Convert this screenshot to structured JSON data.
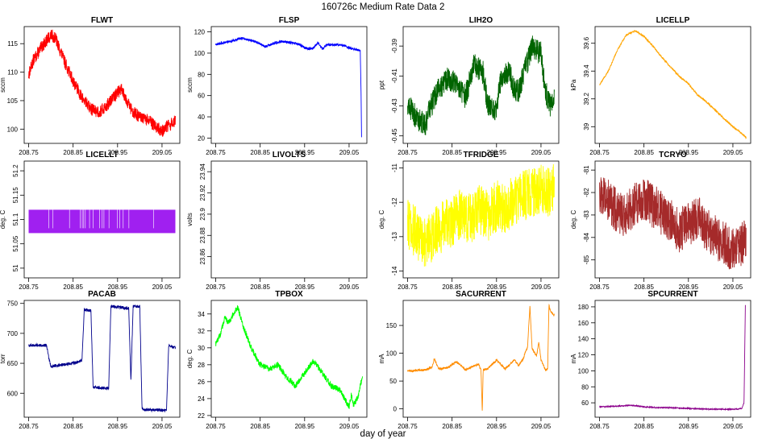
{
  "page": {
    "title": "160726c   Medium Rate Data 2",
    "xlabel": "day of year"
  },
  "chart_data": [
    {
      "type": "line",
      "title": "FLWT",
      "ylabel": "sccm",
      "color": "#ff0000",
      "xlim": [
        208.74,
        209.09
      ],
      "ylim": [
        97.5,
        118
      ],
      "yticks": [
        100,
        105,
        110,
        115
      ],
      "xticks": [
        208.75,
        208.85,
        208.95,
        209.05
      ],
      "noise": 1.1,
      "rotate": false,
      "series": [
        {
          "name": "FLWT",
          "x": [
            208.75,
            208.76,
            208.78,
            208.8,
            208.81,
            208.83,
            208.85,
            208.87,
            208.89,
            208.91,
            208.93,
            208.95,
            208.96,
            208.98,
            209.0,
            209.02,
            209.04,
            209.05,
            209.06,
            209.07,
            209.08
          ],
          "values": [
            109.5,
            112,
            114.5,
            116.5,
            116,
            112,
            108.5,
            105.5,
            103.5,
            103,
            104.5,
            106.5,
            107,
            103.5,
            102,
            101.5,
            100.2,
            99.6,
            100.4,
            100.8,
            101.6
          ]
        }
      ]
    },
    {
      "type": "line",
      "title": "FLSP",
      "ylabel": "sccm",
      "color": "#0000ff",
      "xlim": [
        208.74,
        209.09
      ],
      "ylim": [
        15,
        125
      ],
      "yticks": [
        20,
        40,
        60,
        80,
        100,
        120
      ],
      "xticks": [
        208.75,
        208.85,
        208.95,
        209.05
      ],
      "noise": 1.2,
      "rotate": false,
      "series": [
        {
          "name": "FLSP",
          "x": [
            208.75,
            208.77,
            208.79,
            208.81,
            208.83,
            208.85,
            208.86,
            208.88,
            208.9,
            208.92,
            208.94,
            208.95,
            208.96,
            208.97,
            208.98,
            208.99,
            209.0,
            209.02,
            209.04,
            209.05,
            209.06,
            209.07,
            209.075,
            209.077,
            209.078
          ],
          "values": [
            108,
            110,
            112,
            114,
            112,
            109,
            106,
            109,
            111,
            110,
            108,
            105,
            104,
            105,
            110,
            104,
            108,
            108,
            107,
            105,
            104,
            103,
            103,
            60,
            20
          ]
        }
      ]
    },
    {
      "type": "line",
      "title": "LIH2O",
      "ylabel": "ppt",
      "color": "#006400",
      "xlim": [
        208.74,
        209.09
      ],
      "ylim": [
        -0.455,
        -0.377
      ],
      "yticks": [
        -0.45,
        -0.43,
        -0.41,
        -0.39
      ],
      "xticks": [
        208.75,
        208.85,
        208.95,
        209.05
      ],
      "noise": 0.008,
      "rotate": true,
      "series": [
        {
          "name": "LIH2O",
          "x": [
            208.75,
            208.77,
            208.79,
            208.8,
            208.82,
            208.84,
            208.86,
            208.88,
            208.9,
            208.92,
            208.93,
            208.95,
            208.96,
            208.98,
            208.99,
            209.0,
            209.02,
            209.03,
            209.05,
            209.06,
            209.07,
            209.08
          ],
          "values": [
            -0.428,
            -0.438,
            -0.442,
            -0.432,
            -0.418,
            -0.412,
            -0.414,
            -0.424,
            -0.402,
            -0.408,
            -0.43,
            -0.432,
            -0.41,
            -0.407,
            -0.42,
            -0.42,
            -0.4,
            -0.39,
            -0.395,
            -0.42,
            -0.43,
            -0.425
          ]
        }
      ]
    },
    {
      "type": "line",
      "title": "LICELLP",
      "ylabel": "kPa",
      "color": "#ffa500",
      "xlim": [
        208.74,
        209.09
      ],
      "ylim": [
        38.88,
        39.72
      ],
      "yticks": [
        39.0,
        39.2,
        39.4,
        39.6
      ],
      "xticks": [
        208.75,
        208.85,
        208.95,
        209.05
      ],
      "noise": 0.006,
      "rotate": true,
      "series": [
        {
          "name": "LICELLP",
          "x": [
            208.75,
            208.77,
            208.79,
            208.81,
            208.83,
            208.85,
            208.87,
            208.89,
            208.91,
            208.93,
            208.95,
            208.97,
            208.99,
            209.01,
            209.03,
            209.05,
            209.07,
            209.08
          ],
          "values": [
            39.3,
            39.4,
            39.55,
            39.66,
            39.69,
            39.65,
            39.58,
            39.5,
            39.43,
            39.36,
            39.31,
            39.23,
            39.18,
            39.12,
            39.06,
            39.0,
            38.95,
            38.92
          ]
        }
      ]
    },
    {
      "type": "band",
      "title": "LICELLT",
      "ylabel": "deg. C",
      "color": "#a020f0",
      "xlim": [
        208.74,
        209.09
      ],
      "ylim": [
        50.98,
        51.22
      ],
      "yticks": [
        51.0,
        51.05,
        51.1,
        51.15,
        51.2
      ],
      "xticks": [
        208.75,
        208.85,
        208.95,
        209.05
      ],
      "noise": 0,
      "rotate": true,
      "series": [
        {
          "name": "LICELLT",
          "x": [
            208.75,
            209.08
          ],
          "values": [
            51.072,
            51.12
          ]
        }
      ]
    },
    {
      "type": "empty",
      "title": "LIVOLTS",
      "ylabel": "volts",
      "color": "#000000",
      "xlim": [
        208.74,
        209.09
      ],
      "ylim": [
        23.84,
        23.95
      ],
      "yticks": [
        23.86,
        23.88,
        23.9,
        23.92,
        23.94
      ],
      "xticks": [
        208.75,
        208.85,
        208.95,
        209.05
      ],
      "noise": 0,
      "rotate": true,
      "series": []
    },
    {
      "type": "line",
      "title": "TFRIDGE",
      "ylabel": "deg. C",
      "color": "#ffff00",
      "xlim": [
        208.74,
        209.09
      ],
      "ylim": [
        -14.2,
        -10.8
      ],
      "yticks": [
        -14.0,
        -13.0,
        -12.0,
        -11.0
      ],
      "xticks": [
        208.75,
        208.85,
        208.95,
        209.05
      ],
      "noise": 0.75,
      "rotate": true,
      "series": [
        {
          "name": "TFRIDGE",
          "x": [
            208.75,
            208.77,
            208.79,
            208.81,
            208.83,
            208.85,
            208.87,
            208.89,
            208.91,
            208.93,
            208.95,
            208.97,
            208.99,
            209.01,
            209.03,
            209.05,
            209.07,
            209.08
          ],
          "values": [
            -12.6,
            -12.9,
            -13.2,
            -12.9,
            -12.7,
            -12.6,
            -12.3,
            -12.5,
            -12.2,
            -12.4,
            -12.1,
            -12.2,
            -11.9,
            -11.8,
            -11.7,
            -11.6,
            -11.7,
            -11.6
          ]
        }
      ]
    },
    {
      "type": "line",
      "title": "TCRYO",
      "ylabel": "deg. C",
      "color": "#a52a2a",
      "xlim": [
        208.74,
        209.09
      ],
      "ylim": [
        -85.8,
        -80.6
      ],
      "yticks": [
        -85,
        -84,
        -83,
        -82,
        -81
      ],
      "xticks": [
        208.75,
        208.85,
        208.95,
        209.05
      ],
      "noise": 1.0,
      "rotate": true,
      "series": [
        {
          "name": "TCRYO",
          "x": [
            208.75,
            208.77,
            208.79,
            208.81,
            208.83,
            208.85,
            208.87,
            208.89,
            208.91,
            208.93,
            208.95,
            208.97,
            208.99,
            209.01,
            209.03,
            209.05,
            209.07,
            209.08
          ],
          "values": [
            -82.0,
            -82.4,
            -82.8,
            -83.0,
            -82.5,
            -82.2,
            -82.6,
            -82.9,
            -83.3,
            -83.7,
            -83.4,
            -83.1,
            -83.6,
            -84.0,
            -84.2,
            -84.6,
            -84.3,
            -84.0
          ]
        }
      ]
    },
    {
      "type": "line",
      "title": "PACAB",
      "ylabel": "torr",
      "color": "#00008b",
      "xlim": [
        208.74,
        209.09
      ],
      "ylim": [
        560,
        755
      ],
      "yticks": [
        600,
        650,
        700,
        750
      ],
      "xticks": [
        208.75,
        208.85,
        208.95,
        209.05
      ],
      "noise": 2.5,
      "rotate": false,
      "series": [
        {
          "name": "PACAB",
          "x": [
            208.75,
            208.79,
            208.795,
            208.8,
            208.83,
            208.86,
            208.87,
            208.875,
            208.89,
            208.895,
            208.93,
            208.935,
            208.94,
            208.975,
            208.98,
            208.985,
            209.0,
            209.005,
            209.01,
            209.06,
            209.065,
            209.07,
            209.08
          ],
          "values": [
            680,
            680,
            660,
            645,
            648,
            652,
            655,
            740,
            738,
            610,
            608,
            745,
            745,
            742,
            620,
            745,
            745,
            575,
            572,
            572,
            680,
            678,
            676
          ]
        }
      ]
    },
    {
      "type": "line",
      "title": "TPBOX",
      "ylabel": "deg. C",
      "color": "#00ff00",
      "xlim": [
        208.74,
        209.09
      ],
      "ylim": [
        21.8,
        35.6
      ],
      "yticks": [
        22,
        24,
        26,
        28,
        30,
        32,
        34
      ],
      "xticks": [
        208.75,
        208.85,
        208.95,
        209.05
      ],
      "noise": 0.35,
      "rotate": false,
      "series": [
        {
          "name": "TPBOX",
          "x": [
            208.75,
            208.76,
            208.77,
            208.78,
            208.79,
            208.8,
            208.81,
            208.83,
            208.85,
            208.87,
            208.89,
            208.91,
            208.93,
            208.95,
            208.97,
            208.99,
            209.01,
            209.03,
            209.05,
            209.055,
            209.06,
            209.07,
            209.075,
            209.08
          ],
          "values": [
            30.5,
            31.5,
            33.5,
            33.0,
            34.0,
            34.8,
            32.8,
            30.0,
            28.0,
            27.5,
            28.0,
            26.5,
            25.5,
            27.0,
            28.5,
            27.0,
            25.5,
            25.0,
            23.0,
            24.5,
            23.2,
            24.2,
            25.5,
            26.5
          ]
        }
      ]
    },
    {
      "type": "line",
      "title": "SACURRENT",
      "ylabel": "mA",
      "color": "#ff8c00",
      "xlim": [
        208.74,
        209.09
      ],
      "ylim": [
        -15,
        195
      ],
      "yticks": [
        0,
        50,
        100,
        150
      ],
      "xticks": [
        208.75,
        208.85,
        208.95,
        209.05
      ],
      "noise": 2.0,
      "rotate": false,
      "series": [
        {
          "name": "SACURRENT",
          "x": [
            208.75,
            208.79,
            208.805,
            208.81,
            208.82,
            208.84,
            208.86,
            208.88,
            208.9,
            208.91,
            208.915,
            208.918,
            208.92,
            208.93,
            208.95,
            208.97,
            208.99,
            209.0,
            209.01,
            209.015,
            209.02,
            209.025,
            209.03,
            209.04,
            209.045,
            209.05,
            209.06,
            209.065,
            209.068,
            209.07,
            209.075,
            209.08
          ],
          "values": [
            68,
            70,
            75,
            90,
            72,
            74,
            85,
            70,
            78,
            80,
            70,
            -5,
            70,
            72,
            88,
            72,
            88,
            78,
            90,
            102,
            112,
            185,
            108,
            95,
            120,
            88,
            70,
            72,
            190,
            178,
            172,
            168
          ]
        }
      ]
    },
    {
      "type": "line",
      "title": "SPCURRENT",
      "ylabel": "mA",
      "color": "#8b008b",
      "xlim": [
        208.74,
        209.09
      ],
      "ylim": [
        42,
        188
      ],
      "yticks": [
        60,
        80,
        100,
        120,
        140,
        160,
        180
      ],
      "xticks": [
        208.75,
        208.85,
        208.95,
        209.05
      ],
      "noise": 0.6,
      "rotate": false,
      "series": [
        {
          "name": "SPCURRENT",
          "x": [
            208.75,
            208.8,
            208.82,
            208.85,
            208.88,
            208.9,
            208.95,
            209.0,
            209.03,
            209.06,
            209.07,
            209.075,
            209.078
          ],
          "values": [
            55,
            56,
            57,
            55,
            54,
            54,
            53,
            52,
            52,
            52,
            53,
            60,
            182
          ]
        }
      ]
    }
  ]
}
